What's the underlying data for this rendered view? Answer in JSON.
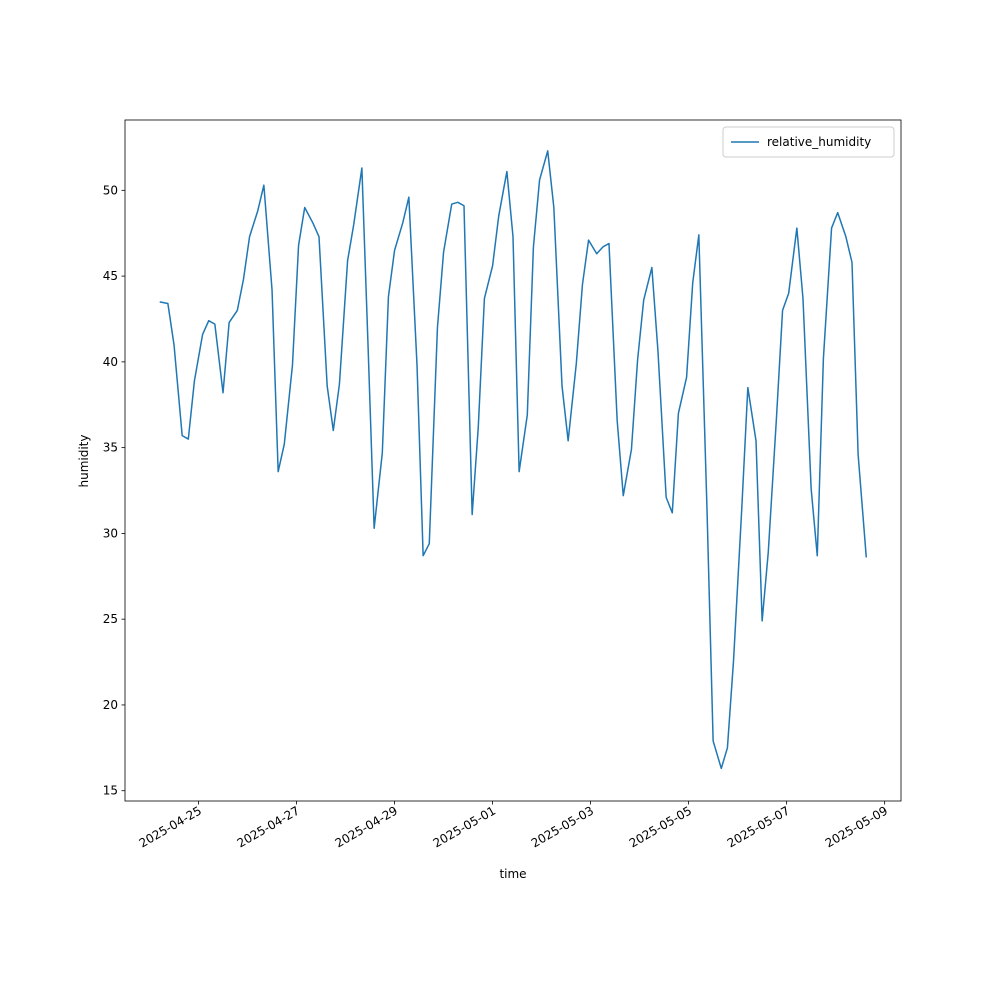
{
  "chart_data": {
    "type": "line",
    "x_label": "time",
    "y_label": "humidity",
    "x": [
      "2025-04-24T05:00",
      "2025-04-24T09:00",
      "2025-04-24T12:00",
      "2025-04-24T16:00",
      "2025-04-24T19:00",
      "2025-04-24T22:00",
      "2025-04-25T02:00",
      "2025-04-25T05:00",
      "2025-04-25T08:00",
      "2025-04-25T12:00",
      "2025-04-25T15:00",
      "2025-04-25T19:00",
      "2025-04-25T22:00",
      "2025-04-26T01:00",
      "2025-04-26T05:00",
      "2025-04-26T08:00",
      "2025-04-26T12:00",
      "2025-04-26T15:00",
      "2025-04-26T18:00",
      "2025-04-26T22:00",
      "2025-04-27T01:00",
      "2025-04-27T04:00",
      "2025-04-27T08:00",
      "2025-04-27T11:00",
      "2025-04-27T15:00",
      "2025-04-27T18:00",
      "2025-04-27T21:00",
      "2025-04-28T01:00",
      "2025-04-28T04:00",
      "2025-04-28T08:00",
      "2025-04-28T11:00",
      "2025-04-28T14:00",
      "2025-04-28T18:00",
      "2025-04-28T21:00",
      "2025-04-29T00:00",
      "2025-04-29T04:00",
      "2025-04-29T07:00",
      "2025-04-29T11:00",
      "2025-04-29T14:00",
      "2025-04-29T17:00",
      "2025-04-29T21:00",
      "2025-04-30T00:00",
      "2025-04-30T04:00",
      "2025-04-30T07:00",
      "2025-04-30T10:00",
      "2025-04-30T14:00",
      "2025-04-30T17:00",
      "2025-04-30T20:00",
      "2025-05-01T00:00",
      "2025-05-01T03:00",
      "2025-05-01T07:00",
      "2025-05-01T10:00",
      "2025-05-01T13:00",
      "2025-05-01T17:00",
      "2025-05-01T20:00",
      "2025-05-01T23:00",
      "2025-05-02T03:00",
      "2025-05-02T06:00",
      "2025-05-02T10:00",
      "2025-05-02T13:00",
      "2025-05-02T17:00",
      "2025-05-02T20:00",
      "2025-05-02T23:00",
      "2025-05-03T03:00",
      "2025-05-03T06:00",
      "2025-05-03T09:00",
      "2025-05-03T13:00",
      "2025-05-03T16:00",
      "2025-05-03T20:00",
      "2025-05-03T23:00",
      "2025-05-04T02:00",
      "2025-05-04T06:00",
      "2025-05-04T09:00",
      "2025-05-04T13:00",
      "2025-05-04T16:00",
      "2025-05-04T19:00",
      "2025-05-04T23:00",
      "2025-05-05T02:00",
      "2025-05-05T05:00",
      "2025-05-05T09:00",
      "2025-05-05T12:00",
      "2025-05-05T16:00",
      "2025-05-05T19:00",
      "2025-05-05T22:00",
      "2025-05-06T02:00",
      "2025-05-06T05:00",
      "2025-05-06T09:00",
      "2025-05-06T12:00",
      "2025-05-06T15:00",
      "2025-05-06T19:00",
      "2025-05-06T22:00",
      "2025-05-07T01:00",
      "2025-05-07T05:00",
      "2025-05-07T08:00",
      "2025-05-07T12:00",
      "2025-05-07T15:00",
      "2025-05-07T18:00",
      "2025-05-07T22:00",
      "2025-05-08T01:00",
      "2025-05-08T05:00",
      "2025-05-08T08:00",
      "2025-05-08T11:00",
      "2025-05-08T15:00"
    ],
    "series": [
      {
        "name": "relative_humidity",
        "color": "#1f77b4",
        "values": [
          43.5,
          43.4,
          41.0,
          35.7,
          35.5,
          38.9,
          41.6,
          42.4,
          42.2,
          38.2,
          42.3,
          43.0,
          44.8,
          47.3,
          48.8,
          50.3,
          44.2,
          33.6,
          35.2,
          39.8,
          46.8,
          49.0,
          48.1,
          47.3,
          38.6,
          36.0,
          38.7,
          45.9,
          48.0,
          51.3,
          41.0,
          30.3,
          34.7,
          43.8,
          46.5,
          48.1,
          49.6,
          39.8,
          28.7,
          29.4,
          42.0,
          46.4,
          49.2,
          49.3,
          49.1,
          31.1,
          36.2,
          43.7,
          45.6,
          48.5,
          51.1,
          47.3,
          33.6,
          36.9,
          46.7,
          50.6,
          52.3,
          49.0,
          38.6,
          35.4,
          39.9,
          44.5,
          47.1,
          46.3,
          46.7,
          46.9,
          36.6,
          32.2,
          34.9,
          40.1,
          43.6,
          45.5,
          40.6,
          32.1,
          31.2,
          37.0,
          39.1,
          44.6,
          47.4,
          31.4,
          17.9,
          16.3,
          17.5,
          22.6,
          31.4,
          38.5,
          35.4,
          24.9,
          28.9,
          36.7,
          43.0,
          44.0,
          47.8,
          43.7,
          32.6,
          28.7,
          40.2,
          47.8,
          48.7,
          47.3,
          45.8,
          34.6,
          28.6
        ]
      }
    ],
    "xlim": [
      "2025-04-23T12:00",
      "2025-05-09T08:00"
    ],
    "xticks": [
      "2025-04-25",
      "2025-04-27",
      "2025-04-29",
      "2025-05-01",
      "2025-05-03",
      "2025-05-05",
      "2025-05-07",
      "2025-05-09"
    ],
    "ylim": [
      14.4,
      54.1
    ],
    "yticks": [
      15,
      20,
      25,
      30,
      35,
      40,
      45,
      50
    ],
    "legend": "upper right"
  }
}
